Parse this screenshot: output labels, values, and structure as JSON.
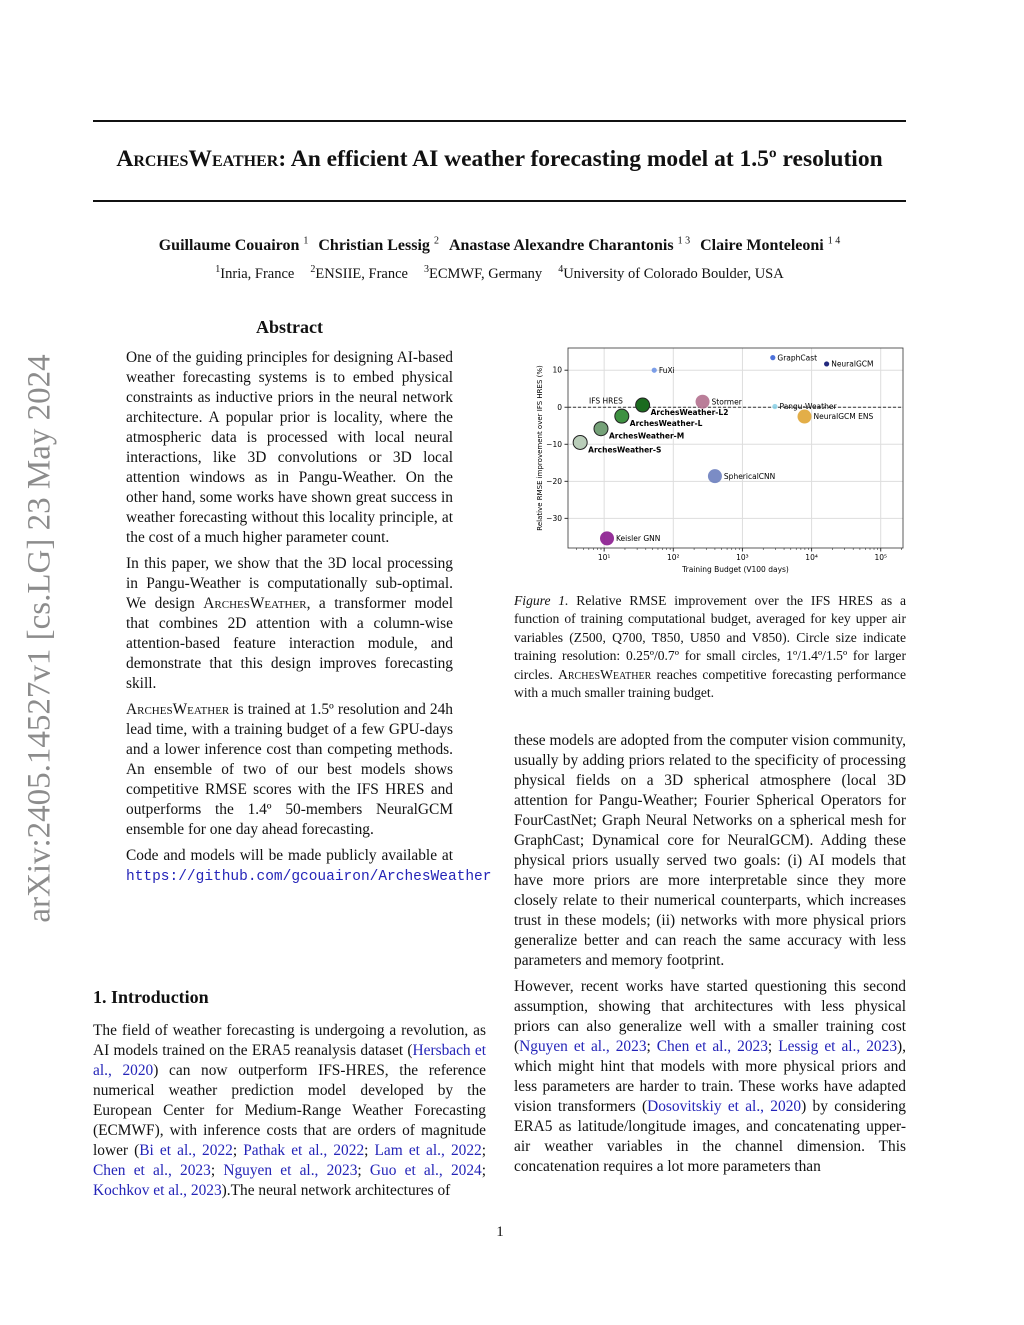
{
  "arxiv_stamp": "arXiv:2405.14527v1  [cs.LG]  23 May 2024",
  "title": {
    "name_sc": "ArchesWeather",
    "rest": ": An efficient AI weather forecasting model at 1.5º resolution"
  },
  "authors": [
    {
      "name": "Guillaume Couairon",
      "aff": "1"
    },
    {
      "name": "Christian Lessig",
      "aff": "2"
    },
    {
      "name": "Anastase Alexandre Charantonis",
      "aff": "1 3"
    },
    {
      "name": "Claire Monteleoni",
      "aff": "1 4"
    }
  ],
  "affiliations": [
    {
      "num": "1",
      "text": "Inria, France"
    },
    {
      "num": "2",
      "text": "ENSIIE, France"
    },
    {
      "num": "3",
      "text": "ECMWF, Germany"
    },
    {
      "num": "4",
      "text": "University of Colorado Boulder, USA"
    }
  ],
  "abstract": {
    "heading": "Abstract",
    "paragraphs": [
      [
        {
          "t": "One of the guiding principles for designing AI-based weather forecasting systems is to embed physical constraints as inductive priors in the neural network architecture.  A popular prior is locality, where the atmospheric data is processed with local neural interactions, like 3D convolutions or 3D local attention windows as in Pangu-Weather.  On the other hand, some works have shown great success in weather forecasting without this locality principle, at the cost of a much higher parameter count."
        }
      ],
      [
        {
          "t": "In this paper, we show that the 3D local processing in Pangu-Weather is computationally sub-optimal. We design "
        },
        {
          "t": "ArchesWeather",
          "sc": true
        },
        {
          "t": ", a transformer model that combines 2D attention with a column-wise attention-based feature interaction module, and demonstrate that this design improves forecasting skill."
        }
      ],
      [
        {
          "t": "ArchesWeather",
          "sc": true
        },
        {
          "t": " is trained at 1.5º resolution and 24h lead time, with a training budget of a few GPU-days and a lower inference cost than competing methods. An ensemble of two of our best models shows competitive RMSE scores with the IFS HRES and outperforms the 1.4º 50-members NeuralGCM ensemble for one day ahead forecasting."
        }
      ],
      [
        {
          "t": "Code and models will be made publicly available at "
        },
        {
          "t": "https://github.com/gcouairon/ArchesWeather",
          "mono": true
        }
      ]
    ]
  },
  "intro": {
    "heading": "1. Introduction",
    "paragraphs": [
      [
        {
          "t": "The field of weather forecasting is undergoing a revolution, as AI models trained on the ERA5 reanalysis dataset ("
        },
        {
          "t": "Hersbach et al., 2020",
          "link": true
        },
        {
          "t": ") can now outperform IFS-HRES, the reference numerical weather prediction model developed by the European Center for Medium-Range Weather Forecasting (ECMWF), with inference costs that are orders of magnitude lower ("
        },
        {
          "t": "Bi et al., 2022",
          "link": true
        },
        {
          "t": "; "
        },
        {
          "t": "Pathak et al., 2022",
          "link": true
        },
        {
          "t": "; "
        },
        {
          "t": "Lam et al., 2022",
          "link": true
        },
        {
          "t": "; "
        },
        {
          "t": "Chen et al., 2023",
          "link": true
        },
        {
          "t": "; "
        },
        {
          "t": "Nguyen et al., 2023",
          "link": true
        },
        {
          "t": "; "
        },
        {
          "t": "Guo et al., 2024",
          "link": true
        },
        {
          "t": "; "
        },
        {
          "t": "Kochkov et al., 2023",
          "link": true
        },
        {
          "t": ").The neural network architectures of"
        }
      ]
    ]
  },
  "right_column": {
    "paragraphs": [
      [
        {
          "t": "these models are adopted from the computer vision community, usually by adding priors related to the specificity of processing physical fields on a 3D spherical atmosphere (local 3D attention for Pangu-Weather; Fourier Spherical Operators for FourCastNet; Graph Neural Networks on a spherical mesh for GraphCast; Dynamical core for NeuralGCM). Adding these physical priors usually served two goals: (i) AI models that have more priors are more interpretable since they more closely relate to their numerical counterparts, which increases trust in these models; (ii) networks with more physical priors generalize better and can reach the same accuracy with less parameters and memory footprint."
        }
      ],
      [
        {
          "t": "However, recent works have started questioning this second assumption, showing that architectures with less physical priors can also generalize well with a smaller training cost ("
        },
        {
          "t": "Nguyen et al., 2023",
          "link": true
        },
        {
          "t": "; "
        },
        {
          "t": "Chen et al., 2023",
          "link": true
        },
        {
          "t": "; "
        },
        {
          "t": "Lessig et al., 2023",
          "link": true
        },
        {
          "t": "), which might hint that models with more physical priors and less parameters are harder to train. These works have adapted vision transformers ("
        },
        {
          "t": "Dosovitskiy et al., 2020",
          "link": true
        },
        {
          "t": ") by considering ERA5 as latitude/longitude images, and concatenating upper-air weather variables in the channel dimension. This concatenation requires a lot more parameters than"
        }
      ]
    ]
  },
  "figure": {
    "label": "Figure 1.",
    "caption": [
      {
        "t": " Relative RMSE improvement over the IFS HRES as a function of training computational budget, averaged for key upper air variables (Z500, Q700, T850, U850 and V850). Circle size indicate training resolution: 0.25º/0.7º for small circles, 1º/1.4º/1.5º for larger circles. "
      },
      {
        "t": "ArchesWeather",
        "sc": true
      },
      {
        "t": " reaches competitive forecasting performance with a much smaller training budget."
      }
    ]
  },
  "chart_data": {
    "type": "scatter",
    "xlabel": "Training Budget (V100 days)",
    "ylabel": "Relative RMSE improvement over IFS HRES (%)",
    "x_scale": "log",
    "xlim": [
      3,
      210000
    ],
    "ylim": [
      -38,
      16
    ],
    "x_ticks": [
      10,
      100,
      1000,
      10000,
      100000
    ],
    "x_tick_labels": [
      "10¹",
      "10²",
      "10³",
      "10⁴",
      "10⁵"
    ],
    "y_ticks": [
      10,
      0,
      -10,
      -20,
      -30
    ],
    "y_tick_labels": [
      "10",
      "0",
      "−10",
      "−20",
      "−30"
    ],
    "grid": true,
    "reference_line": {
      "y": 0,
      "label": "IFS HRES",
      "style": "dashed"
    },
    "points": [
      {
        "name": "FuXi",
        "x": 53,
        "y": 10,
        "size": "small",
        "color": "#6f95e6",
        "bold": false
      },
      {
        "name": "GraphCast",
        "x": 2750,
        "y": 13.4,
        "size": "small",
        "color": "#3b63d6",
        "bold": false
      },
      {
        "name": "NeuralGCM",
        "x": 16500,
        "y": 11.7,
        "size": "small",
        "color": "#0b1270",
        "bold": false
      },
      {
        "name": "Stormer",
        "x": 265,
        "y": 1.5,
        "size": "large",
        "color": "#b3708e",
        "bold": false
      },
      {
        "name": "Pangu-Weather",
        "x": 2950,
        "y": 0.2,
        "size": "small",
        "color": "#8fd3e8",
        "bold": false
      },
      {
        "name": "NeuralGCM ENS",
        "x": 7900,
        "y": -2.5,
        "size": "large",
        "color": "#e0a534",
        "bold": false
      },
      {
        "name": "ArchesWeather-L2",
        "x": 36,
        "y": 0.6,
        "size": "large",
        "color": "#1b6b1f",
        "bold": true
      },
      {
        "name": "ArchesWeather-L",
        "x": 18,
        "y": -2.4,
        "size": "large",
        "color": "#3e9141",
        "bold": true
      },
      {
        "name": "ArchesWeather-M",
        "x": 9,
        "y": -5.8,
        "size": "large",
        "color": "#75a178",
        "bold": true
      },
      {
        "name": "ArchesWeather-S",
        "x": 4.5,
        "y": -9.5,
        "size": "large",
        "color": "#b9cdb9",
        "bold": true
      },
      {
        "name": "SphericalCNN",
        "x": 400,
        "y": -18.6,
        "size": "large",
        "color": "#6d7fbf",
        "bold": false
      },
      {
        "name": "Keisler GNN",
        "x": 11,
        "y": -35.4,
        "size": "large",
        "color": "#8a1a8e",
        "bold": false
      }
    ]
  },
  "page_number": "1"
}
